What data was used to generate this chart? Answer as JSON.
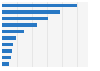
{
  "values": [
    100,
    78,
    61,
    47,
    30,
    19,
    15,
    13,
    12,
    10
  ],
  "bar_color": "#2878c4",
  "background_color": "#ffffff",
  "plot_bg_color": "#f5f5f5",
  "grid_color": "#e0e0e0",
  "figsize": [
    1.0,
    0.71
  ],
  "dpi": 100,
  "bar_height": 0.55,
  "xlim_max": 115
}
